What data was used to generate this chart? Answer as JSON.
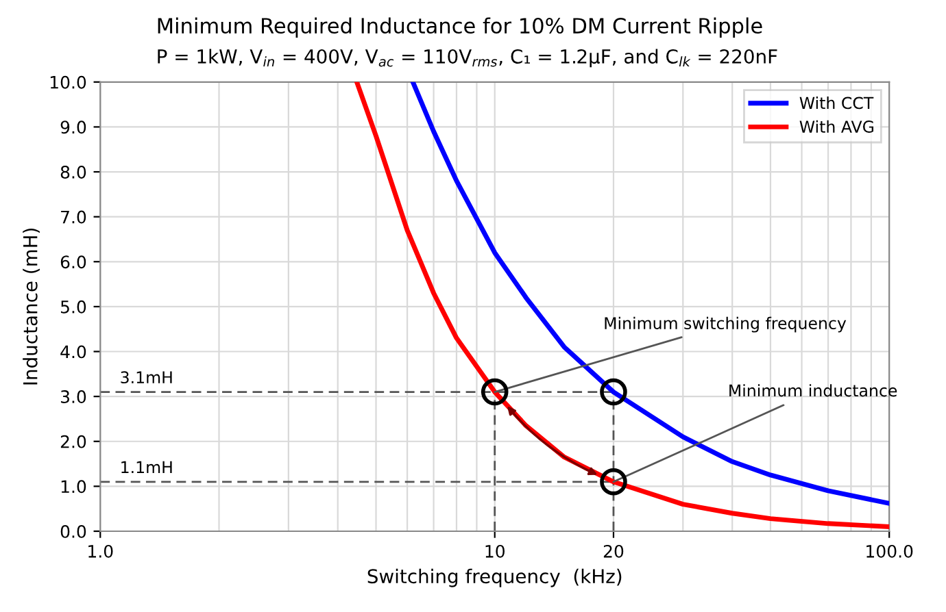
{
  "chart_data": {
    "type": "line",
    "title": "Minimum Required Inductance for 10% DM Current Ripple",
    "subtitle": "P = 1kW, V$_{in}$ = 400V, V$_{ac}$ = 110V$_{rms}$, C₁ = 1.2µF, and C$_{lk}$ = 220nF",
    "xlabel": "Switching frequency  (kHz)",
    "ylabel": "Inductance (mH)",
    "log": "x",
    "xlim": [
      1,
      100
    ],
    "xticks": [
      {
        "value": 1,
        "label": "1.0"
      },
      10,
      20,
      {
        "value": 100,
        "label": "100.0"
      }
    ],
    "ylim": [
      0,
      10
    ],
    "yticks": [
      {
        "value": 0,
        "label": "0.0"
      },
      {
        "value": 1,
        "label": "1.0"
      },
      {
        "value": 2,
        "label": "2.0"
      },
      {
        "value": 3,
        "label": "3.0"
      },
      {
        "value": 4,
        "label": "4.0"
      },
      {
        "value": 5,
        "label": "5.0"
      },
      {
        "value": 6,
        "label": "6.0"
      },
      {
        "value": 7,
        "label": "7.0"
      },
      {
        "value": 8,
        "label": "8.0"
      },
      {
        "value": 9,
        "label": "9.0"
      },
      {
        "value": 10,
        "label": "10.0"
      }
    ],
    "grid": true,
    "legend": "top right",
    "series": [
      {
        "name": "With CCT",
        "color": "#0000ff",
        "x": [
          6.2,
          7,
          8,
          10,
          12,
          15,
          20,
          30,
          40,
          50,
          70,
          100
        ],
        "values": [
          10,
          8.9,
          7.8,
          6.2,
          5.2,
          4.1,
          3.1,
          2.1,
          1.55,
          1.25,
          0.9,
          0.62
        ]
      },
      {
        "name": "With AVG",
        "color": "#ff0000",
        "x": [
          4.47,
          5,
          6,
          7,
          8,
          10,
          12,
          15,
          20,
          30,
          40,
          50,
          70,
          100
        ],
        "values": [
          10,
          8.8,
          6.7,
          5.3,
          4.3,
          3.1,
          2.35,
          1.65,
          1.1,
          0.6,
          0.4,
          0.28,
          0.17,
          0.1
        ]
      },
      {
        "type": "line",
        "color": "#555555",
        "line_style": "dashed",
        "x": [
          1,
          20
        ],
        "values": [
          3.1,
          3.1
        ]
      },
      {
        "type": "line",
        "color": "#555555",
        "line_style": "dashed",
        "x": [
          1,
          20
        ],
        "values": [
          1.1,
          1.1
        ]
      },
      {
        "type": "line",
        "color": "#555555",
        "line_style": "dashed",
        "x": [
          10,
          10
        ],
        "values": [
          0,
          3.1
        ]
      },
      {
        "type": "line",
        "color": "#555555",
        "line_style": "dashed",
        "x": [
          20,
          20
        ],
        "values": [
          0,
          3.1
        ]
      },
      {
        "type": "scatter",
        "color": "#000000",
        "marker": "circle",
        "x": [
          10,
          20,
          20
        ],
        "values": [
          3.1,
          3.1,
          1.1
        ]
      }
    ],
    "annotations": [
      {
        "text": "3.1mH",
        "x": 1,
        "y": 3.1
      },
      {
        "text": "1.1mH",
        "x": 1,
        "y": 1.1
      },
      {
        "text": "Minimum switching frequency",
        "x": 10,
        "y": 3.1
      },
      {
        "text": "Minimum inductance",
        "x": 20,
        "y": 1.1
      }
    ]
  }
}
